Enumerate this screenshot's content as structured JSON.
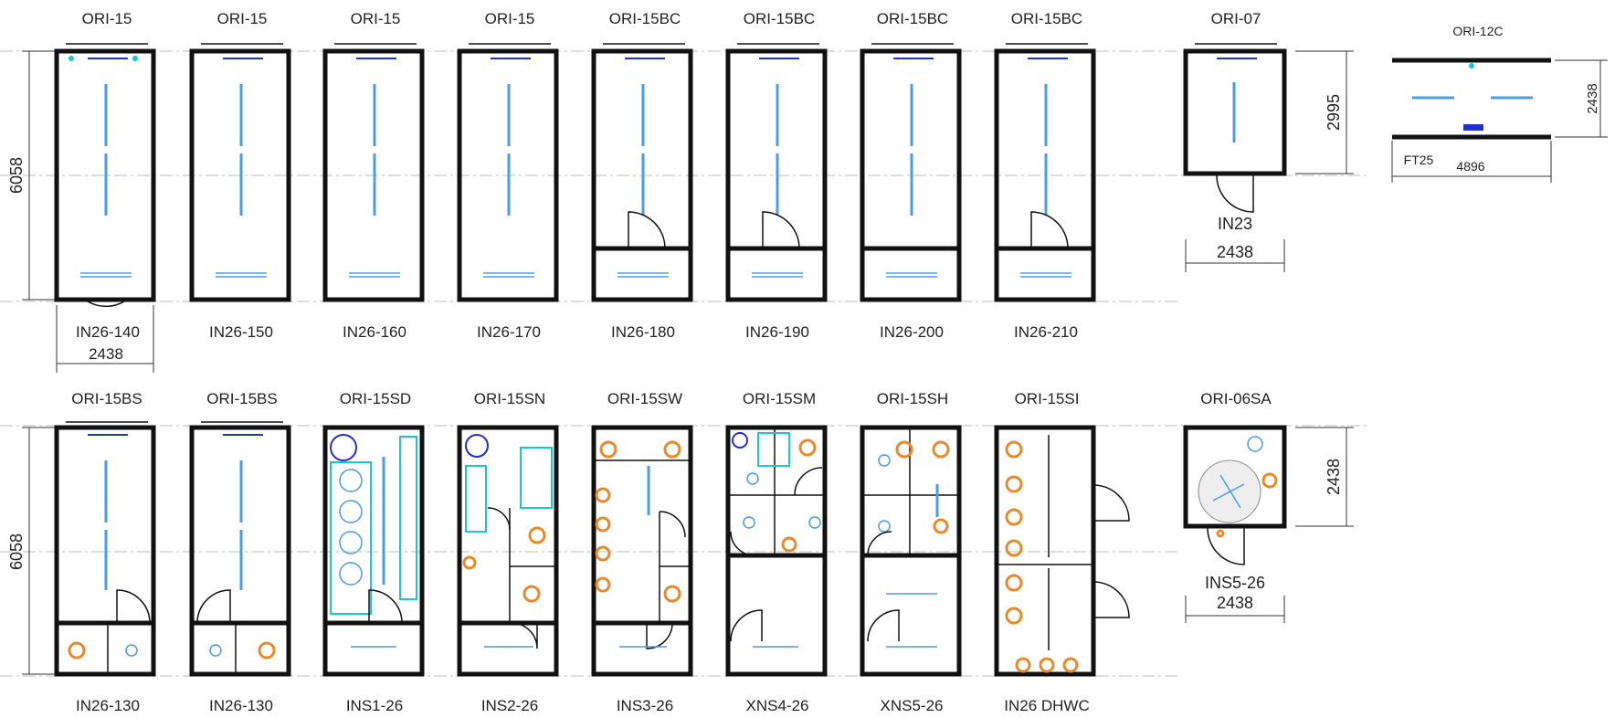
{
  "modules_row1": [
    {
      "title": "ORI-15",
      "code": "IN26-140"
    },
    {
      "title": "ORI-15",
      "code": "IN26-150"
    },
    {
      "title": "ORI-15",
      "code": "IN26-160"
    },
    {
      "title": "ORI-15",
      "code": "IN26-170"
    },
    {
      "title": "ORI-15BC",
      "code": "IN26-180"
    },
    {
      "title": "ORI-15BC",
      "code": "IN26-190"
    },
    {
      "title": "ORI-15BC",
      "code": "IN26-200"
    },
    {
      "title": "ORI-15BC",
      "code": "IN26-210"
    }
  ],
  "modules_row2": [
    {
      "title": "ORI-15BS",
      "code": "IN26-130"
    },
    {
      "title": "ORI-15BS",
      "code": "IN26-130"
    },
    {
      "title": "ORI-15SD",
      "code": "INS1-26"
    },
    {
      "title": "ORI-15SN",
      "code": "INS2-26"
    },
    {
      "title": "ORI-15SW",
      "code": "INS3-26"
    },
    {
      "title": "ORI-15SM",
      "code": "XNS4-26"
    },
    {
      "title": "ORI-15SH",
      "code": "XNS5-26"
    },
    {
      "title": "ORI-15SI",
      "code": "IN26 DHWC"
    }
  ],
  "module_small_top": {
    "title": "ORI-07",
    "code": "IN23",
    "width": "2438",
    "height": "2995"
  },
  "module_wide": {
    "title": "ORI-12C",
    "code": "FT25",
    "width": "4896",
    "height": "2438"
  },
  "module_small_bottom": {
    "title": "ORI-06SA",
    "code": "INS5-26",
    "width": "2438",
    "height": "2438"
  },
  "dimensions": {
    "length_row1": "6058",
    "length_row2": "6058",
    "width_row1": "2438"
  },
  "colors": {
    "wall": "#111111",
    "fixture": "#4b9be6",
    "sanitary": "#e88a2a",
    "fitting": "#15c8d6"
  }
}
